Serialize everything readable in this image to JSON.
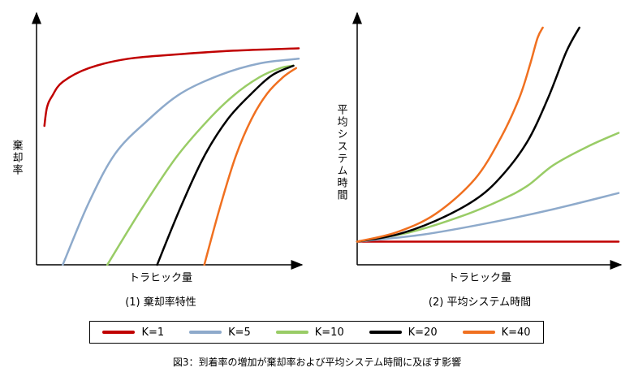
{
  "colors": {
    "K=1": "#c00000",
    "K=5": "#8eaacb",
    "K=10": "#99cc66",
    "K=20": "#000000",
    "K=40": "#f07020"
  },
  "chart_data": [
    {
      "type": "line",
      "subtitle": "(1) 棄却率特性",
      "xlabel": "トラヒック量",
      "ylabel": "棄却率",
      "xlim": [
        0,
        1
      ],
      "ylim": [
        0,
        1
      ],
      "grid": false,
      "series": [
        {
          "name": "K=1",
          "x": [
            0.03,
            0.04,
            0.06,
            0.1,
            0.2,
            0.35,
            0.55,
            0.75,
            1.0
          ],
          "y": [
            0.6,
            0.68,
            0.73,
            0.79,
            0.85,
            0.89,
            0.91,
            0.925,
            0.935
          ]
        },
        {
          "name": "K=5",
          "x": [
            0.1,
            0.2,
            0.3,
            0.42,
            0.55,
            0.7,
            0.85,
            1.0
          ],
          "y": [
            0.0,
            0.27,
            0.48,
            0.62,
            0.74,
            0.82,
            0.87,
            0.89
          ]
        },
        {
          "name": "K=10",
          "x": [
            0.27,
            0.4,
            0.53,
            0.65,
            0.75,
            0.85,
            0.93,
            0.98
          ],
          "y": [
            0.0,
            0.24,
            0.46,
            0.62,
            0.73,
            0.81,
            0.85,
            0.86
          ]
        },
        {
          "name": "K=20",
          "x": [
            0.46,
            0.55,
            0.64,
            0.73,
            0.82,
            0.9,
            0.98
          ],
          "y": [
            0.0,
            0.25,
            0.47,
            0.63,
            0.74,
            0.82,
            0.86
          ]
        },
        {
          "name": "K=40",
          "x": [
            0.64,
            0.7,
            0.76,
            0.82,
            0.88,
            0.94,
            0.99
          ],
          "y": [
            0.0,
            0.25,
            0.47,
            0.63,
            0.74,
            0.81,
            0.85
          ]
        }
      ]
    },
    {
      "type": "line",
      "subtitle": "(2) 平均システム時間",
      "xlabel": "トラヒック量",
      "ylabel": "平均システム時間",
      "xlim": [
        0,
        1
      ],
      "ylim": [
        0,
        1
      ],
      "grid": false,
      "series": [
        {
          "name": "K=1",
          "x": [
            0.0,
            1.0
          ],
          "y": [
            0.1,
            0.1
          ]
        },
        {
          "name": "K=5",
          "x": [
            0.0,
            0.25,
            0.5,
            0.75,
            1.0
          ],
          "y": [
            0.1,
            0.13,
            0.18,
            0.24,
            0.31
          ]
        },
        {
          "name": "K=10",
          "x": [
            0.0,
            0.2,
            0.4,
            0.55,
            0.65,
            0.75,
            0.88,
            1.0
          ],
          "y": [
            0.1,
            0.14,
            0.21,
            0.28,
            0.34,
            0.43,
            0.51,
            0.57
          ]
        },
        {
          "name": "K=20",
          "x": [
            0.0,
            0.15,
            0.3,
            0.45,
            0.55,
            0.65,
            0.73,
            0.8,
            0.85
          ],
          "y": [
            0.1,
            0.13,
            0.19,
            0.28,
            0.38,
            0.53,
            0.72,
            0.92,
            1.05
          ]
        },
        {
          "name": "K=40",
          "x": [
            0.0,
            0.15,
            0.3,
            0.45,
            0.55,
            0.62,
            0.66,
            0.69,
            0.71
          ],
          "y": [
            0.1,
            0.14,
            0.22,
            0.37,
            0.55,
            0.72,
            0.86,
            0.98,
            1.07
          ]
        }
      ]
    }
  ],
  "legend": [
    "K=1",
    "K=5",
    "K=10",
    "K=20",
    "K=40"
  ],
  "caption": "図3：到着率の増加が棄却率および平均システム時間に及ぼす影響"
}
